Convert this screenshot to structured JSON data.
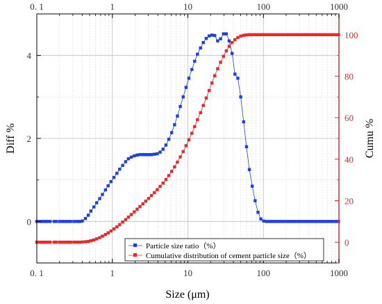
{
  "chart_data": {
    "type": "scatter",
    "xlabel": "Size (μm)",
    "ylabel_left": "Diff %",
    "ylabel_right": "Cumu %",
    "x_scale": "log",
    "xlim": [
      0.1,
      1000
    ],
    "ylim_left": [
      -1,
      5
    ],
    "ylim_right": [
      -10,
      110
    ],
    "x_ticks": [
      0.1,
      1,
      10,
      100,
      1000
    ],
    "x_tick_labels": [
      "0. 1",
      "1",
      "10",
      "100",
      "1000"
    ],
    "y_left_ticks": [
      0,
      2,
      4
    ],
    "y_left_tick_labels": [
      "0",
      "2",
      "4"
    ],
    "y_right_ticks": [
      0,
      20,
      40,
      60,
      80,
      100
    ],
    "y_right_tick_labels": [
      "0",
      "20",
      "40",
      "60",
      "80",
      "100"
    ],
    "grid": true,
    "legend_placement": "bottom-center",
    "series": [
      {
        "name": "Particle size ratio（%）",
        "axis": "left",
        "color": "#1f3fe0",
        "x": [
          0.1,
          0.11,
          0.12,
          0.13,
          0.14,
          0.15,
          0.17,
          0.18,
          0.2,
          0.22,
          0.24,
          0.26,
          0.28,
          0.31,
          0.34,
          0.37,
          0.4,
          0.44,
          0.48,
          0.52,
          0.57,
          0.62,
          0.68,
          0.74,
          0.81,
          0.88,
          0.96,
          1.05,
          1.15,
          1.25,
          1.37,
          1.5,
          1.63,
          1.78,
          1.95,
          2.13,
          2.32,
          2.54,
          2.77,
          3.02,
          3.3,
          3.6,
          3.93,
          4.29,
          4.69,
          5.12,
          5.59,
          6.1,
          6.66,
          7.27,
          7.94,
          8.67,
          9.46,
          10.3,
          11.3,
          12.3,
          13.4,
          14.7,
          16,
          17.5,
          19.1,
          20.8,
          22.7,
          24.8,
          27.1,
          29.6,
          32.3,
          35.2,
          38.5,
          42,
          45.9,
          50.1,
          54.7,
          59.7,
          65.2,
          71.1,
          77.7,
          84.8,
          92.6,
          101,
          110,
          120,
          131,
          143,
          156,
          171,
          186,
          204,
          222,
          243,
          265,
          289,
          316,
          345,
          376,
          411,
          449,
          490,
          535,
          584,
          637,
          696,
          760,
          829,
          905,
          988
        ],
        "values": [
          0,
          0,
          0,
          0,
          0,
          0,
          0,
          0,
          0,
          0,
          0,
          0,
          0,
          0,
          0,
          0,
          0.01,
          0.07,
          0.15,
          0.25,
          0.35,
          0.45,
          0.55,
          0.65,
          0.76,
          0.86,
          0.96,
          1.06,
          1.16,
          1.26,
          1.35,
          1.44,
          1.51,
          1.55,
          1.58,
          1.6,
          1.61,
          1.61,
          1.61,
          1.61,
          1.61,
          1.62,
          1.63,
          1.67,
          1.74,
          1.84,
          1.98,
          2.14,
          2.33,
          2.54,
          2.77,
          3.0,
          3.23,
          3.45,
          3.66,
          3.86,
          4.03,
          4.18,
          4.31,
          4.41,
          4.47,
          4.49,
          4.48,
          4.35,
          4.4,
          4.52,
          4.52,
          4.35,
          4.05,
          3.55,
          3.45,
          3.0,
          2.4,
          1.8,
          1.25,
          0.85,
          0.5,
          0.22,
          0.06,
          0.01,
          0,
          0,
          0,
          0,
          0,
          0,
          0,
          0,
          0,
          0,
          0,
          0,
          0,
          0,
          0,
          0,
          0,
          0,
          0,
          0,
          0,
          0,
          0,
          0,
          0,
          0
        ]
      },
      {
        "name": "Cumulative distribution of cement particle size（%）",
        "axis": "right",
        "color": "#e8282b",
        "x": [
          0.1,
          0.11,
          0.12,
          0.13,
          0.14,
          0.15,
          0.17,
          0.18,
          0.2,
          0.22,
          0.24,
          0.26,
          0.28,
          0.31,
          0.34,
          0.37,
          0.4,
          0.44,
          0.48,
          0.52,
          0.57,
          0.62,
          0.68,
          0.74,
          0.81,
          0.88,
          0.96,
          1.05,
          1.15,
          1.25,
          1.37,
          1.5,
          1.63,
          1.78,
          1.95,
          2.13,
          2.32,
          2.54,
          2.77,
          3.02,
          3.3,
          3.6,
          3.93,
          4.29,
          4.69,
          5.12,
          5.59,
          6.1,
          6.66,
          7.27,
          7.94,
          8.67,
          9.46,
          10.3,
          11.3,
          12.3,
          13.4,
          14.7,
          16,
          17.5,
          19.1,
          20.8,
          22.7,
          24.8,
          27.1,
          29.6,
          32.3,
          35.2,
          38.5,
          42,
          45.9,
          50.1,
          54.7,
          59.7,
          65.2,
          71.1,
          77.7,
          84.8,
          92.6,
          101,
          110,
          120,
          131,
          143,
          156,
          171,
          186,
          204,
          222,
          243,
          265,
          289,
          316,
          345,
          376,
          411,
          449,
          490,
          535,
          584,
          637,
          696,
          760,
          829,
          905,
          988
        ],
        "values": [
          0,
          0,
          0,
          0,
          0,
          0,
          0,
          0,
          0,
          0,
          0,
          0,
          0,
          0,
          0,
          0,
          0.1,
          0.2,
          0.4,
          0.7,
          1.1,
          1.6,
          2.2,
          2.9,
          3.7,
          4.5,
          5.4,
          6.4,
          7.4,
          8.5,
          9.7,
          10.9,
          12.1,
          13.3,
          14.6,
          15.9,
          17.2,
          18.5,
          19.8,
          21.1,
          22.5,
          23.9,
          25.3,
          26.9,
          28.5,
          30.2,
          32.1,
          34.1,
          36.3,
          38.6,
          41.1,
          43.7,
          46.5,
          49.4,
          52.5,
          55.7,
          59.0,
          62.4,
          65.9,
          69.5,
          73.1,
          76.7,
          80.2,
          83.6,
          86.7,
          89.6,
          92.2,
          94.4,
          96.2,
          97.6,
          98.6,
          99.3,
          99.7,
          99.9,
          100,
          100,
          100,
          100,
          100,
          100,
          100,
          100,
          100,
          100,
          100,
          100,
          100,
          100,
          100,
          100,
          100,
          100,
          100,
          100,
          100,
          100,
          100,
          100,
          100,
          100,
          100,
          100,
          100,
          100,
          100,
          100
        ]
      }
    ]
  }
}
